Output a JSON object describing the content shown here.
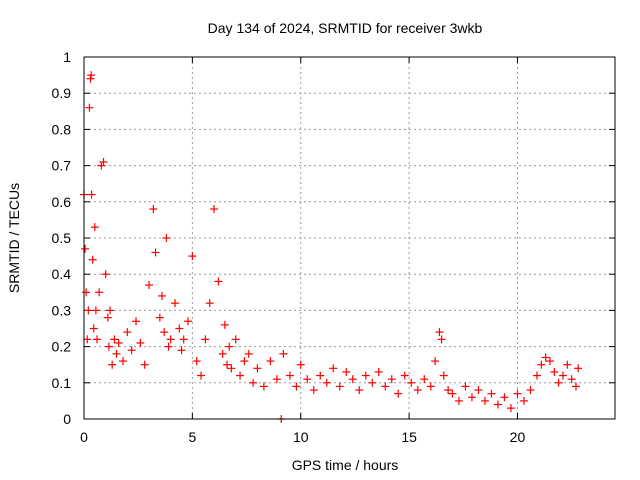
{
  "chart_data": {
    "type": "scatter",
    "title": "Day 134 of 2024, SRMTID for receiver 3wkb",
    "xlabel": "GPS time / hours",
    "ylabel": "SRMTID / TECUs",
    "xlim": [
      0,
      24.5
    ],
    "ylim": [
      0,
      1
    ],
    "xticks": [
      0,
      5,
      10,
      15,
      20
    ],
    "yticks": [
      0,
      0.1,
      0.2,
      0.3,
      0.4,
      0.5,
      0.6,
      0.7,
      0.8,
      0.9,
      1
    ],
    "grid": true,
    "series": [
      {
        "name": "SRMTID",
        "color": "#ff0000",
        "marker": "plus",
        "x": [
          0.0,
          0.05,
          0.1,
          0.15,
          0.2,
          0.25,
          0.3,
          0.33,
          0.35,
          0.4,
          0.45,
          0.5,
          0.55,
          0.6,
          0.7,
          0.8,
          0.9,
          1.0,
          1.1,
          1.15,
          1.2,
          1.3,
          1.4,
          1.5,
          1.6,
          1.8,
          2.0,
          2.2,
          2.4,
          2.6,
          2.8,
          3.0,
          3.2,
          3.3,
          3.5,
          3.6,
          3.7,
          3.8,
          3.9,
          4.0,
          4.2,
          4.4,
          4.5,
          4.6,
          4.8,
          5.0,
          5.2,
          5.4,
          5.6,
          5.8,
          6.0,
          6.2,
          6.4,
          6.5,
          6.6,
          6.7,
          6.8,
          7.0,
          7.2,
          7.4,
          7.6,
          7.8,
          8.0,
          8.3,
          8.6,
          8.9,
          9.2,
          9.5,
          9.8,
          10.0,
          10.3,
          10.6,
          10.9,
          11.2,
          11.5,
          11.8,
          12.1,
          12.4,
          12.7,
          13.0,
          13.3,
          13.6,
          13.9,
          14.2,
          14.5,
          14.8,
          15.1,
          15.4,
          15.7,
          16.0,
          16.2,
          16.4,
          16.5,
          16.6,
          16.8,
          17.0,
          17.3,
          17.6,
          17.9,
          18.2,
          18.5,
          18.8,
          19.1,
          19.4,
          19.7,
          20.0,
          20.3,
          20.6,
          20.9,
          21.1,
          21.3,
          21.5,
          21.7,
          21.9,
          22.1,
          22.3,
          22.5,
          22.7,
          22.8,
          9.1
        ],
        "y": [
          0.62,
          0.47,
          0.35,
          0.22,
          0.3,
          0.86,
          0.94,
          0.95,
          0.62,
          0.44,
          0.25,
          0.53,
          0.3,
          0.22,
          0.35,
          0.7,
          0.71,
          0.4,
          0.28,
          0.2,
          0.3,
          0.15,
          0.22,
          0.18,
          0.21,
          0.16,
          0.24,
          0.19,
          0.27,
          0.21,
          0.15,
          0.37,
          0.58,
          0.46,
          0.28,
          0.34,
          0.24,
          0.5,
          0.2,
          0.22,
          0.32,
          0.25,
          0.19,
          0.22,
          0.27,
          0.45,
          0.16,
          0.12,
          0.22,
          0.32,
          0.58,
          0.38,
          0.18,
          0.26,
          0.15,
          0.2,
          0.14,
          0.22,
          0.12,
          0.16,
          0.18,
          0.1,
          0.14,
          0.09,
          0.16,
          0.11,
          0.18,
          0.12,
          0.09,
          0.15,
          0.11,
          0.08,
          0.12,
          0.1,
          0.14,
          0.09,
          0.13,
          0.11,
          0.08,
          0.12,
          0.1,
          0.13,
          0.09,
          0.11,
          0.07,
          0.12,
          0.1,
          0.08,
          0.11,
          0.09,
          0.16,
          0.24,
          0.22,
          0.12,
          0.08,
          0.07,
          0.05,
          0.09,
          0.06,
          0.08,
          0.05,
          0.07,
          0.04,
          0.06,
          0.03,
          0.07,
          0.05,
          0.08,
          0.12,
          0.15,
          0.17,
          0.16,
          0.13,
          0.1,
          0.12,
          0.15,
          0.11,
          0.09,
          0.14,
          0.0
        ]
      }
    ]
  }
}
